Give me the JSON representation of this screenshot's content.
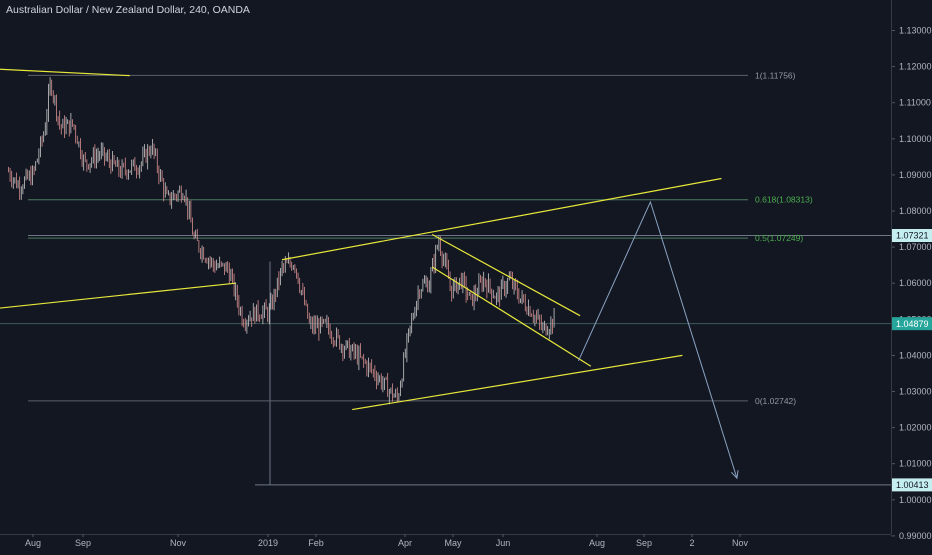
{
  "header": {
    "title": "Australian Dollar / New Zealand Dollar, 240, OANDA"
  },
  "colors": {
    "background": "#131722",
    "trendline": "#e8e83a",
    "candle_up": "#c9c9c9",
    "candle_down": "#d98f8f",
    "fib_line": "#4c7c63",
    "fib_label_green": "#4caf50",
    "arrow": "#8aa3c2",
    "price_tag_teal": "#26a69a",
    "price_tag_light": "#c4eef0"
  },
  "chart_data": {
    "type": "line",
    "symbol": "AUDNZD",
    "timeframe": "240",
    "ylim": [
      0.99,
      1.135
    ],
    "y_ticks": [
      "1.13000",
      "1.12000",
      "1.11000",
      "1.10000",
      "1.09000",
      "1.08000",
      "1.07000",
      "1.06000",
      "1.05000",
      "1.04000",
      "1.03000",
      "1.02000",
      "1.01000",
      "1.00000",
      "0.99000"
    ],
    "x_ticks": [
      "Aug",
      "Sep",
      "Nov",
      "2019",
      "Feb",
      "Apr",
      "May",
      "Jun",
      "Aug",
      "Sep",
      "2",
      "Nov"
    ],
    "price_series": [
      {
        "x": "2018-07-15",
        "y": 1.091
      },
      {
        "x": "2018-07-22",
        "y": 1.087
      },
      {
        "x": "2018-08-01",
        "y": 1.09
      },
      {
        "x": "2018-08-08",
        "y": 1.102
      },
      {
        "x": "2018-08-12",
        "y": 1.116
      },
      {
        "x": "2018-08-18",
        "y": 1.103
      },
      {
        "x": "2018-08-26",
        "y": 1.104
      },
      {
        "x": "2018-09-02",
        "y": 1.093
      },
      {
        "x": "2018-09-12",
        "y": 1.096
      },
      {
        "x": "2018-09-25",
        "y": 1.091
      },
      {
        "x": "2018-10-08",
        "y": 1.093
      },
      {
        "x": "2018-10-15",
        "y": 1.098
      },
      {
        "x": "2018-10-25",
        "y": 1.083
      },
      {
        "x": "2018-11-05",
        "y": 1.086
      },
      {
        "x": "2018-11-12",
        "y": 1.072
      },
      {
        "x": "2018-11-25",
        "y": 1.065
      },
      {
        "x": "2018-12-05",
        "y": 1.064
      },
      {
        "x": "2018-12-15",
        "y": 1.05
      },
      {
        "x": "2018-12-25",
        "y": 1.052
      },
      {
        "x": "2019-01-02",
        "y": 1.052
      },
      {
        "x": "2019-01-10",
        "y": 1.064
      },
      {
        "x": "2019-01-18",
        "y": 1.066
      },
      {
        "x": "2019-01-28",
        "y": 1.048
      },
      {
        "x": "2019-02-08",
        "y": 1.048
      },
      {
        "x": "2019-02-18",
        "y": 1.043
      },
      {
        "x": "2019-02-28",
        "y": 1.04
      },
      {
        "x": "2019-03-12",
        "y": 1.035
      },
      {
        "x": "2019-03-22",
        "y": 1.03
      },
      {
        "x": "2019-03-27",
        "y": 1.028
      },
      {
        "x": "2019-04-03",
        "y": 1.045
      },
      {
        "x": "2019-04-10",
        "y": 1.059
      },
      {
        "x": "2019-04-16",
        "y": 1.06
      },
      {
        "x": "2019-04-22",
        "y": 1.072
      },
      {
        "x": "2019-04-30",
        "y": 1.058
      },
      {
        "x": "2019-05-06",
        "y": 1.061
      },
      {
        "x": "2019-05-12",
        "y": 1.055
      },
      {
        "x": "2019-05-20",
        "y": 1.061
      },
      {
        "x": "2019-05-28",
        "y": 1.056
      },
      {
        "x": "2019-06-05",
        "y": 1.061
      },
      {
        "x": "2019-06-12",
        "y": 1.056
      },
      {
        "x": "2019-06-20",
        "y": 1.052
      },
      {
        "x": "2019-06-27",
        "y": 1.047
      },
      {
        "x": "2019-07-02",
        "y": 1.049
      },
      {
        "x": "2019-07-05",
        "y": 1.05
      }
    ],
    "trendlines": [
      {
        "x1": "2018-06-01",
        "y1": 1.12,
        "x2": "2018-10-01",
        "y2": 1.1175
      },
      {
        "x1": "2018-06-01",
        "y1": 1.0515,
        "x2": "2018-12-10",
        "y2": 1.06
      },
      {
        "x1": "2019-01-10",
        "y1": 1.0665,
        "x2": "2019-10-20",
        "y2": 1.089
      },
      {
        "x1": "2019-02-25",
        "y1": 1.025,
        "x2": "2019-09-25",
        "y2": 1.04
      },
      {
        "x1": "2019-04-18",
        "y1": 1.0735,
        "x2": "2019-07-21",
        "y2": 1.051
      },
      {
        "x1": "2019-04-18",
        "y1": 1.0645,
        "x2": "2019-07-28",
        "y2": 1.037
      }
    ],
    "fib_levels": [
      {
        "label": "1(1.11756)",
        "value": 1.11756
      },
      {
        "label": "0.618(1.08313)",
        "value": 1.08313
      },
      {
        "label": "0.5(1.07249)",
        "value": 1.07249
      },
      {
        "label": "0(1.02742)",
        "value": 1.02742
      }
    ],
    "horizontal_lines": [
      {
        "value": 1.07321,
        "tag": "1.07321",
        "style": "light"
      },
      {
        "value": 1.04879,
        "tag": "1.04879",
        "style": "teal"
      },
      {
        "value": 1.00413,
        "tag": "1.00413",
        "style": "light"
      }
    ],
    "projection_path": [
      {
        "x": "2019-07-20",
        "y": 1.0385
      },
      {
        "x": "2019-09-05",
        "y": 1.0825
      },
      {
        "x": "2019-10-30",
        "y": 1.006
      }
    ]
  }
}
